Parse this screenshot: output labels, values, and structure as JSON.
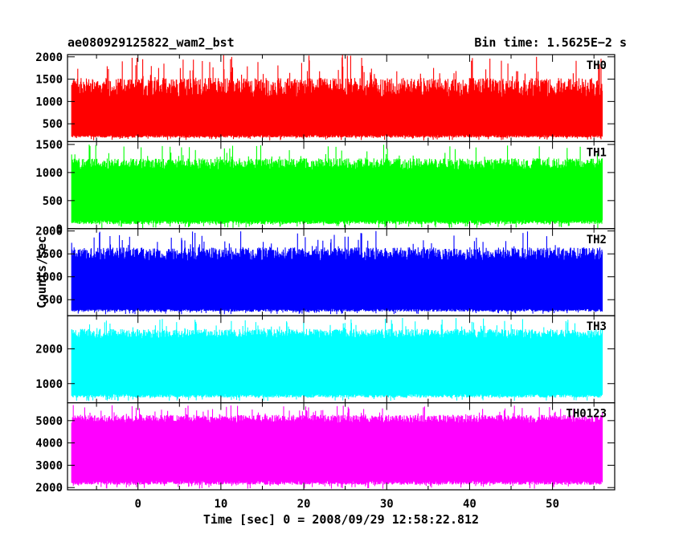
{
  "header": {
    "title": "ae080929125822_wam2_bst",
    "bin_time": "Bin time: 1.5625E−2 s"
  },
  "chart_data": {
    "type": "line",
    "xlabel": "Time [sec] 0 = 2008/09/29 12:58:22.812",
    "ylabel": "Counts/sec",
    "xlim": [
      -8.5,
      57.5
    ],
    "data_x_range": [
      -8.0,
      56.0
    ],
    "x_ticks": [
      0,
      10,
      20,
      30,
      40,
      50
    ],
    "panels": [
      {
        "name": "TH0",
        "color": "#ff0000",
        "ylim": [
          100,
          2050
        ],
        "y_ticks": [
          500,
          1000,
          1500,
          2000
        ],
        "baseline_range": [
          250,
          1100
        ],
        "peak_max": 2050,
        "trough_min": 130
      },
      {
        "name": "TH1",
        "color": "#00ff00",
        "ylim": [
          0,
          1550
        ],
        "y_ticks": [
          0,
          500,
          1000,
          1500
        ],
        "baseline_range": [
          150,
          1050
        ],
        "peak_max": 1500,
        "trough_min": 10
      },
      {
        "name": "TH2",
        "color": "#0000ff",
        "ylim": [
          150,
          2050
        ],
        "y_ticks": [
          500,
          1000,
          1500,
          2000
        ],
        "baseline_range": [
          300,
          1350
        ],
        "peak_max": 2000,
        "trough_min": 180
      },
      {
        "name": "TH3",
        "color": "#00ffff",
        "ylim": [
          450,
          2950
        ],
        "y_ticks": [
          1000,
          2000
        ],
        "baseline_range": [
          700,
          2300
        ],
        "peak_max": 2900,
        "trough_min": 500
      },
      {
        "name": "TH0123",
        "color": "#ff00ff",
        "ylim": [
          1900,
          5800
        ],
        "y_ticks": [
          2000,
          3000,
          4000,
          5000
        ],
        "baseline_range": [
          2300,
          4900
        ],
        "peak_max": 5700,
        "trough_min": 1950
      }
    ]
  }
}
